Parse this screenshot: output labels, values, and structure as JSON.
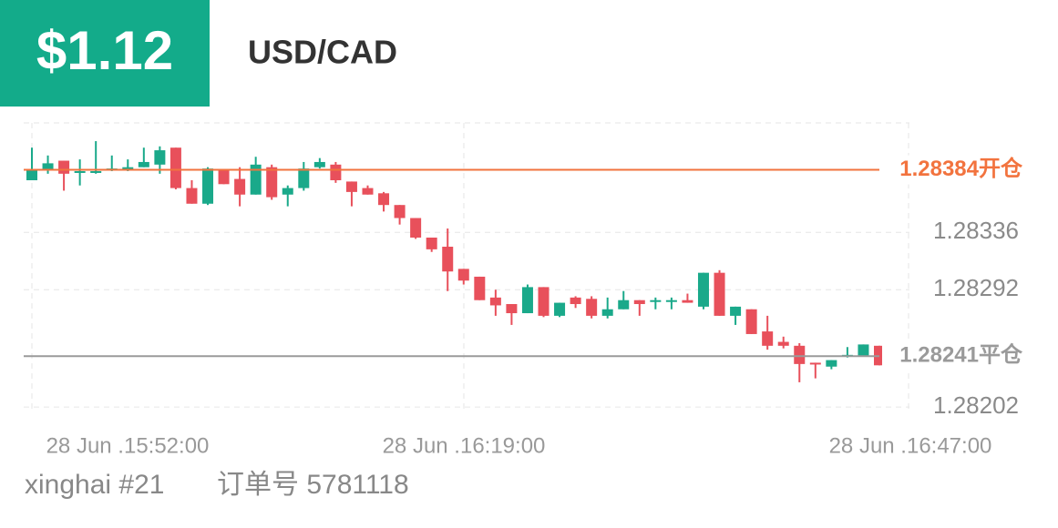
{
  "header": {
    "price": "$1.12",
    "symbol": "USD/CAD"
  },
  "chart_data": {
    "type": "candlestick",
    "x_labels": [
      "28 Jun .15:52:00",
      "28 Jun .16:19:00",
      "28 Jun .16:47:00"
    ],
    "open": [
      1.28376,
      1.28384,
      1.28391,
      1.28382,
      1.28382,
      1.28384,
      1.28384,
      1.28386,
      1.28388,
      1.28401,
      1.2837,
      1.28358,
      1.28384,
      1.28377,
      1.28365,
      1.28386,
      1.28365,
      1.2837,
      1.28386,
      1.28388,
      1.28375,
      1.2837,
      1.28366,
      1.28357,
      1.28347,
      1.28332,
      1.28325,
      1.28308,
      1.28302,
      1.28286,
      1.28281,
      1.28274,
      1.28294,
      1.28272,
      1.28286,
      1.28285,
      1.28272,
      1.28277,
      1.28284,
      1.28283,
      1.28283,
      1.28284,
      1.28279,
      1.28305,
      1.28272,
      1.28277,
      1.2826,
      1.28252,
      1.28249,
      1.28236,
      1.28233,
      1.28241,
      1.28241,
      1.28249
    ],
    "high": [
      1.28401,
      1.28395,
      1.28391,
      1.28392,
      1.28406,
      1.28395,
      1.28392,
      1.28401,
      1.28402,
      1.28401,
      1.28376,
      1.28386,
      1.28384,
      1.28386,
      1.28394,
      1.28388,
      1.28372,
      1.2839,
      1.28393,
      1.2839,
      1.28375,
      1.28372,
      1.28367,
      1.28357,
      1.28347,
      1.28332,
      1.28339,
      1.28308,
      1.28302,
      1.28292,
      1.28281,
      1.28296,
      1.28294,
      1.28282,
      1.28287,
      1.28287,
      1.28286,
      1.28291,
      1.28284,
      1.28286,
      1.28286,
      1.28289,
      1.28305,
      1.28307,
      1.28279,
      1.28277,
      1.28272,
      1.28256,
      1.28251,
      1.28236,
      1.28238,
      1.28248,
      1.2825,
      1.28249
    ],
    "low": [
      1.28376,
      1.28381,
      1.28368,
      1.28372,
      1.28381,
      1.28383,
      1.28383,
      1.28386,
      1.28381,
      1.28369,
      1.28358,
      1.28357,
      1.28373,
      1.28356,
      1.28365,
      1.28361,
      1.28356,
      1.28368,
      1.28385,
      1.28374,
      1.28356,
      1.28365,
      1.28352,
      1.28342,
      1.28331,
      1.28321,
      1.28291,
      1.28296,
      1.28284,
      1.28272,
      1.28265,
      1.28274,
      1.28271,
      1.28271,
      1.28278,
      1.2827,
      1.2827,
      1.28277,
      1.28272,
      1.28277,
      1.28277,
      1.28282,
      1.28277,
      1.28272,
      1.28265,
      1.28258,
      1.28246,
      1.28247,
      1.28221,
      1.28224,
      1.28231,
      1.2824,
      1.28241,
      1.28234
    ],
    "close": [
      1.28384,
      1.28389,
      1.28381,
      1.28383,
      1.28383,
      1.28385,
      1.28386,
      1.2839,
      1.28399,
      1.2837,
      1.28358,
      1.28385,
      1.28373,
      1.28365,
      1.28388,
      1.28363,
      1.2837,
      1.28385,
      1.2839,
      1.28376,
      1.28367,
      1.28365,
      1.28357,
      1.28347,
      1.28332,
      1.28323,
      1.28306,
      1.28299,
      1.28284,
      1.2828,
      1.28274,
      1.28294,
      1.28272,
      1.28282,
      1.28281,
      1.28272,
      1.28277,
      1.28284,
      1.28281,
      1.28284,
      1.28284,
      1.28282,
      1.28305,
      1.28272,
      1.28279,
      1.28258,
      1.28249,
      1.28249,
      1.28235,
      1.28235,
      1.28238,
      1.28242,
      1.2825,
      1.28234
    ],
    "up_color": "#1aa98a",
    "down_color": "#e8505b",
    "ylim": [
      1.28193,
      1.2842
    ],
    "yticks": [
      1.28336,
      1.28292,
      1.28202
    ],
    "grid": true,
    "open_line": {
      "value": 1.28384,
      "label": "1.28384开仓",
      "color": "#f2733e"
    },
    "close_line": {
      "value": 1.28241,
      "label": "1.28241平仓",
      "color": "#9a9a9a"
    }
  },
  "footer": {
    "user": "xinghai #21",
    "order": "订单号 5781118"
  }
}
